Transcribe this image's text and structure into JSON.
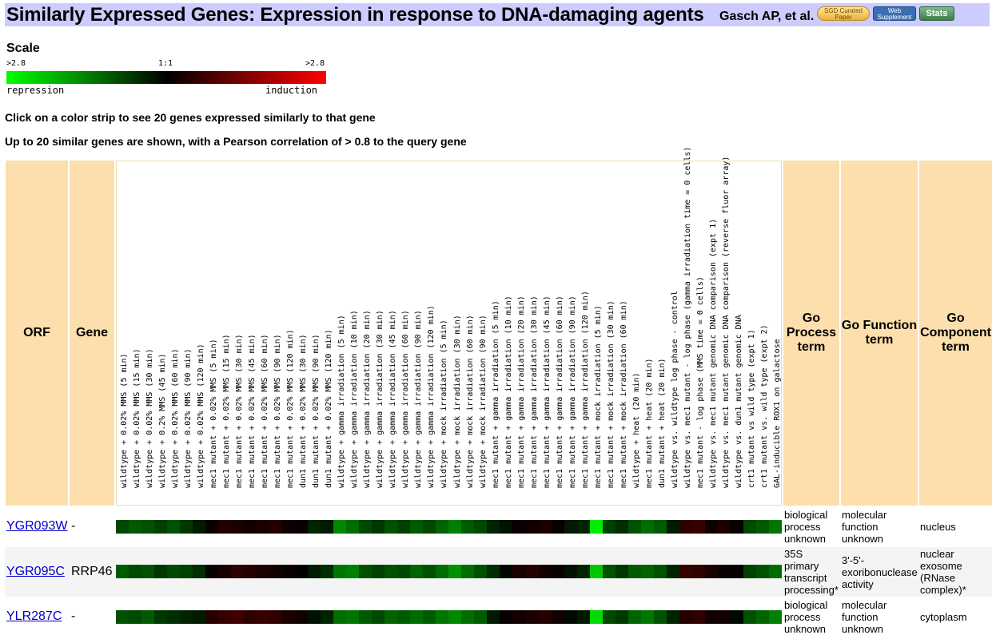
{
  "header": {
    "title": "Similarly Expressed Genes: Expression in response to DNA-damaging agents",
    "author": "Gasch AP, et al.",
    "badges": {
      "curated_line1": "SGD Curated",
      "curated_line2": "Paper",
      "web_line1": "Web",
      "web_line2": "Supplement",
      "stats": "Stats"
    }
  },
  "scale": {
    "heading": "Scale",
    "left_tick": ">2.8",
    "mid_tick": "1:1",
    "right_tick": ">2.8",
    "left_label": "repression",
    "right_label": "induction",
    "colors": {
      "repression": "#00ff00",
      "neutral": "#000000",
      "induction": "#ff0000"
    }
  },
  "notes": {
    "click": "Click on a color strip to see 20 genes expressed similarly to that gene",
    "limit": "Up to 20 similar genes are shown, with a Pearson correlation of > 0.8 to the query gene"
  },
  "columns": {
    "orf": "ORF",
    "gene": "Gene",
    "go_process": "Go Process term",
    "go_function": "Go Function term",
    "go_component": "Go Component term"
  },
  "conditions": [
    "wildtype + 0.02% MMS (5 min)",
    "wildtype + 0.02% MMS (15 min)",
    "wildtype + 0.02% MMS (30 min)",
    "wildtype + 0.2% MMS (45 min)",
    "wildtype + 0.02% MMS (60 min)",
    "wildtype + 0.02% MMS (90 min)",
    "wildtype + 0.02% MMS (120 min)",
    "mec1 mutant + 0.02% MMS (5 min)",
    "mec1 mutant + 0.02% MMS (15 min)",
    "mec1 mutant + 0.02% MMS (30 min)",
    "mec1 mutant + 0.02% MMS (45 min)",
    "mec1 mutant + 0.02% MMS (60 min)",
    "mec1 mutant + 0.02% MMS (90 min)",
    "mec1 mutant + 0.02% MMS (120 min)",
    "dun1 mutant + 0.02% MMS (30 min)",
    "dun1 mutant + 0.02% MMS (90 min)",
    "dun1 mutant + 0.02% MMS (120 min)",
    "wildtype + gamma irradiation (5 min)",
    "wildtype + gamma irradiation (10 min)",
    "wildtype + gamma irradiation (20 min)",
    "wildtype + gamma irradiation (30 min)",
    "wildtype + gamma irradiation (45 min)",
    "wildtype + gamma irradiation (60 min)",
    "wildtype + gamma irradiation (90 min)",
    "wildtype + gamma irradiation (120 min)",
    "wildtype + mock irradiation (5 min)",
    "wildtype + mock irradiation (30 min)",
    "wildtype + mock irradiation (60 min)",
    "wildtype + mock irradiation (90 min)",
    "mec1 mutant + gamma irradiation (5 min)",
    "mec1 mutant + gamma irradiation (10 min)",
    "mec1 mutant + gamma irradiation (20 min)",
    "mec1 mutant + gamma irradiation (30 min)",
    "mec1 mutant + gamma irradiation (45 min)",
    "mec1 mutant + gamma irradiation (60 min)",
    "mec1 mutant + gamma irradiation (90 min)",
    "mec1 mutant + gamma irradiation (120 min)",
    "mec1 mutant + mock irradiation (5 min)",
    "mec1 mutant + mock irradiation (30 min)",
    "mec1 mutant + mock irradiation (60 min)",
    "wildtype + heat (20 min)",
    "mec1 mutant + heat (20 min)",
    "dun1 mutant + heat (20 min)",
    "wildtype vs. wildtype log phase - control",
    "wildtype vs. mec1 mutant - log phase (gamma irradiation time = 0 cells)",
    "mec1 mutant - log phase (MMS time = 0 cells)",
    "wildtype vs. mec1 mutant genomic DNA comparison (expt 1)",
    "wildtype vs. mec1 mutant genomic DNA comparison (reverse fluor array)",
    "wildtype vs. dun1 mutant genomic DNA",
    "crt1 mutant vs wild type (expt 1)",
    "crt1 mutant vs. wild type (expt 2)",
    "GAL-inducible ROX1 on galactose"
  ],
  "genes": [
    {
      "orf": "YGR093W",
      "gene": "-",
      "go_process": "biological process unknown",
      "go_function": "molecular function unknown",
      "go_component": "nucleus",
      "values": [
        -0.8,
        -1.0,
        -0.9,
        -0.7,
        -0.9,
        -0.6,
        -0.3,
        0.1,
        0.4,
        0.3,
        0.2,
        0.3,
        0.4,
        0.2,
        0.1,
        -0.4,
        -0.3,
        -1.5,
        -1.2,
        -0.8,
        -0.6,
        -0.9,
        -0.7,
        -1.0,
        -0.8,
        -1.1,
        -1.4,
        -1.0,
        -0.8,
        -0.4,
        -0.2,
        0.1,
        0.2,
        0.3,
        0.1,
        -0.3,
        -0.4,
        -2.6,
        -0.7,
        -0.5,
        -0.9,
        -1.2,
        -1.0,
        -0.3,
        0.5,
        0.6,
        0.2,
        0.3,
        0.1,
        -0.8,
        -1.0,
        -1.3
      ]
    },
    {
      "orf": "YGR095C",
      "gene": "RRP46",
      "go_process": "35S primary transcript processing*",
      "go_function": "3'-5'-exoribonuclease activity",
      "go_component": "nuclear exosome (RNase complex)*",
      "values": [
        -1.0,
        -0.8,
        -0.9,
        -0.6,
        -0.8,
        -0.7,
        -0.5,
        0.1,
        0.3,
        0.5,
        0.4,
        0.3,
        0.2,
        0.1,
        0.0,
        -0.3,
        -0.5,
        -1.3,
        -1.4,
        -0.9,
        -0.7,
        -0.9,
        -0.8,
        -1.1,
        -0.9,
        -1.2,
        -1.6,
        -1.2,
        -0.9,
        -0.5,
        -0.1,
        0.3,
        0.4,
        0.2,
        0.1,
        -0.2,
        -0.4,
        -2.2,
        -0.9,
        -0.6,
        -1.0,
        -1.1,
        -0.9,
        -0.4,
        0.6,
        0.5,
        0.3,
        0.1,
        0.0,
        -0.7,
        -0.9,
        -1.2
      ]
    },
    {
      "orf": "YLR287C",
      "gene": "-",
      "go_process": "biological process unknown",
      "go_function": "molecular function unknown",
      "go_component": "cytoplasm",
      "values": [
        -0.9,
        -0.8,
        -1.0,
        -0.6,
        -0.5,
        -0.4,
        -0.3,
        0.4,
        0.6,
        0.7,
        0.5,
        0.6,
        0.5,
        0.3,
        0.2,
        -0.2,
        -0.4,
        -1.2,
        -1.3,
        -1.0,
        -0.8,
        -1.1,
        -1.0,
        -1.2,
        -1.0,
        -1.3,
        -1.5,
        -1.2,
        -1.0,
        -0.3,
        0.1,
        0.2,
        0.3,
        0.4,
        0.2,
        -0.1,
        -0.3,
        -2.4,
        -0.8,
        -0.6,
        -1.1,
        -1.3,
        -0.9,
        -0.4,
        0.4,
        0.5,
        0.2,
        0.2,
        -0.1,
        -0.9,
        -1.1,
        -1.4
      ]
    }
  ]
}
